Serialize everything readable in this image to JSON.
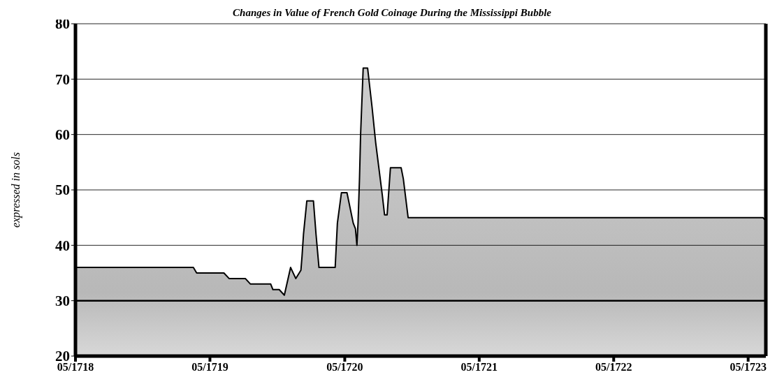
{
  "chart_data": {
    "type": "area",
    "title": "Changes in Value of French Gold Coinage During the Mississippi Bubble",
    "ylabel": "expressed in sols",
    "x": [
      "1718-05-01",
      "1719-03-17",
      "1719-03-26",
      "1719-06-08",
      "1719-06-22",
      "1719-08-05",
      "1719-08-19",
      "1719-10-13",
      "1719-10-19",
      "1719-11-05",
      "1719-11-19",
      "1719-12-06",
      "1719-12-20",
      "1720-01-03",
      "1720-01-06",
      "1720-01-10",
      "1720-01-19",
      "1720-02-06",
      "1720-02-13",
      "1720-02-21",
      "1720-04-05",
      "1720-04-11",
      "1720-04-22",
      "1720-05-07",
      "1720-05-24",
      "1720-05-30",
      "1720-06-03",
      "1720-06-06",
      "1720-06-10",
      "1720-06-13",
      "1720-06-20",
      "1720-07-02",
      "1720-07-14",
      "1720-07-24",
      "1720-08-11",
      "1720-08-17",
      "1720-08-24",
      "1720-09-02",
      "1720-10-01",
      "1720-10-07",
      "1720-10-20",
      "1723-06-10",
      "1723-06-17"
    ],
    "series": [
      {
        "color": "#b8b8b8",
        "values": [
          36,
          36,
          35,
          35,
          34,
          34,
          33,
          33,
          32,
          32,
          31,
          36,
          34,
          35.5,
          38,
          42,
          48,
          48,
          42,
          36,
          36,
          44,
          49.5,
          49.5,
          44,
          43,
          40,
          44,
          52,
          60,
          72,
          72,
          65,
          58.5,
          49,
          45.5,
          45.5,
          54,
          54,
          52,
          45,
          45,
          44.5
        ]
      }
    ],
    "xlim": [
      "1718-05-01",
      "1723-06-18"
    ],
    "xticks": [
      {
        "value": "1718-05-01",
        "label": "05/1718"
      },
      {
        "value": "1719-05-01",
        "label": "05/1719"
      },
      {
        "value": "1720-05-01",
        "label": "05/1720"
      },
      {
        "value": "1721-05-01",
        "label": "05/1721"
      },
      {
        "value": "1722-05-01",
        "label": "05/1722"
      },
      {
        "value": "1723-05-01",
        "label": "05/1723"
      }
    ],
    "ylim": [
      20,
      80
    ],
    "yticks": [
      20,
      30,
      40,
      50,
      60,
      70,
      80
    ],
    "grid": "y",
    "ref_lines": [
      {
        "axis": "y",
        "value": 30,
        "color": "#000000"
      }
    ]
  }
}
